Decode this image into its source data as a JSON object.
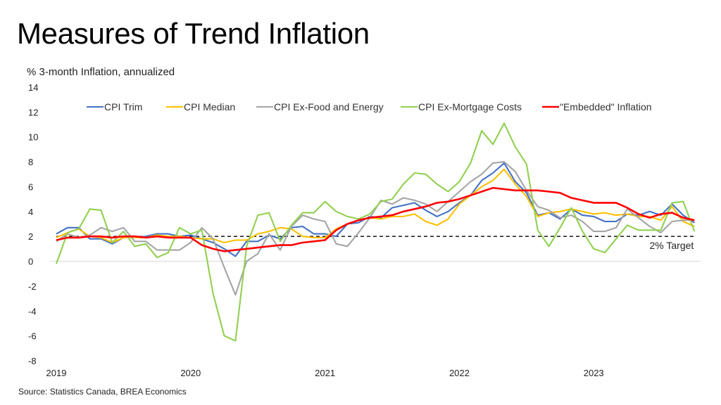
{
  "chart_data": {
    "type": "line",
    "title": "Measures of Trend Inflation",
    "ylabel": "% 3-month Inflation, annualized",
    "xlabel": "",
    "source": "Source: Statistics Canada, BREA Economics",
    "ylim": [
      -8,
      14
    ],
    "yticks": [
      -8,
      -6,
      -4,
      -2,
      0,
      2,
      4,
      6,
      8,
      10,
      12,
      14
    ],
    "x_start": "2019-01",
    "x_frequency": "monthly",
    "xtick_labels": [
      "2019",
      "2020",
      "2021",
      "2022",
      "2023"
    ],
    "grid": false,
    "legend_position": "top",
    "reference_line": {
      "value": 2,
      "label": "2% Target",
      "style": "dashed",
      "color": "#000000"
    },
    "series": [
      {
        "name": "CPI Trim",
        "color": "#4472C4",
        "values": [
          2.2,
          2.7,
          2.7,
          1.8,
          1.8,
          1.4,
          1.9,
          1.9,
          2.0,
          2.2,
          2.2,
          2.0,
          2.1,
          1.8,
          1.5,
          1.0,
          0.4,
          1.6,
          1.6,
          2.1,
          1.8,
          2.7,
          2.8,
          2.2,
          2.2,
          2.0,
          3.0,
          3.1,
          3.6,
          3.5,
          4.3,
          4.5,
          4.7,
          4.1,
          3.6,
          4.0,
          4.7,
          5.3,
          6.5,
          7.1,
          7.9,
          6.4,
          5.5,
          3.7,
          3.9,
          3.4,
          4.2,
          3.7,
          3.6,
          3.2,
          3.2,
          3.8,
          3.7,
          4.0,
          3.7,
          4.6,
          3.7,
          3.1
        ]
      },
      {
        "name": "CPI Median",
        "color": "#FFC000",
        "values": [
          1.9,
          2.3,
          2.6,
          2.0,
          1.9,
          1.5,
          1.9,
          1.9,
          1.9,
          2.1,
          2.0,
          2.0,
          1.9,
          1.8,
          1.8,
          1.5,
          1.7,
          1.7,
          2.2,
          2.4,
          2.7,
          2.6,
          2.0,
          1.9,
          1.9,
          2.6,
          3.0,
          3.3,
          3.5,
          3.4,
          3.6,
          3.6,
          3.8,
          3.2,
          2.9,
          3.4,
          4.6,
          5.3,
          6.0,
          6.5,
          7.4,
          6.2,
          5.2,
          3.6,
          3.9,
          4.0,
          4.2,
          4.0,
          3.8,
          3.9,
          3.7,
          3.8,
          3.6,
          3.6,
          3.3,
          4.4,
          3.2,
          2.8
        ]
      },
      {
        "name": "CPI Ex-Food and Energy",
        "color": "#A5A5A5",
        "values": [
          1.6,
          2.2,
          1.9,
          2.1,
          2.7,
          2.4,
          2.7,
          1.6,
          1.6,
          0.9,
          0.9,
          0.9,
          1.5,
          2.7,
          1.8,
          -0.5,
          -2.7,
          0.0,
          0.6,
          2.2,
          0.9,
          2.8,
          3.7,
          3.4,
          3.2,
          1.4,
          1.2,
          2.3,
          3.5,
          4.9,
          4.6,
          5.1,
          4.9,
          4.6,
          4.0,
          4.8,
          5.6,
          6.4,
          7.0,
          7.9,
          8.0,
          7.2,
          5.7,
          4.4,
          4.1,
          3.5,
          3.7,
          3.2,
          2.4,
          2.4,
          2.7,
          4.2,
          3.5,
          2.8,
          2.3,
          3.2,
          3.3,
          3.3
        ]
      },
      {
        "name": "CPI Ex-Mortgage Costs",
        "color": "#92D050",
        "values": [
          -0.2,
          2.3,
          2.6,
          4.2,
          4.1,
          1.5,
          2.4,
          1.2,
          1.4,
          0.3,
          0.7,
          2.7,
          2.2,
          2.5,
          -2.6,
          -6.0,
          -6.4,
          1.2,
          3.7,
          3.9,
          1.6,
          2.9,
          3.9,
          3.9,
          4.8,
          4.0,
          3.6,
          3.4,
          3.8,
          4.8,
          5.0,
          6.2,
          7.1,
          7.0,
          6.2,
          5.6,
          6.4,
          7.9,
          10.5,
          9.4,
          11.1,
          9.2,
          7.8,
          2.5,
          1.2,
          2.7,
          4.3,
          2.4,
          1.0,
          0.7,
          1.8,
          2.9,
          2.5,
          2.5,
          2.5,
          4.7,
          4.8,
          2.4
        ]
      },
      {
        "name": "\"Embedded\" Inflation",
        "color": "#FF0000",
        "values": [
          1.7,
          1.9,
          1.9,
          2.0,
          2.0,
          1.9,
          2.0,
          2.0,
          1.9,
          2.0,
          1.9,
          1.9,
          1.9,
          1.3,
          1.0,
          0.8,
          0.9,
          1.0,
          1.1,
          1.2,
          1.3,
          1.3,
          1.5,
          1.6,
          1.7,
          2.5,
          3.0,
          3.3,
          3.5,
          3.6,
          3.7,
          4.0,
          4.2,
          4.4,
          4.7,
          4.8,
          5.0,
          5.3,
          5.6,
          5.9,
          5.8,
          5.7,
          5.7,
          5.7,
          5.6,
          5.5,
          5.1,
          4.9,
          4.7,
          4.7,
          4.7,
          4.3,
          3.8,
          3.5,
          3.8,
          3.9,
          3.5,
          3.3
        ]
      }
    ]
  }
}
